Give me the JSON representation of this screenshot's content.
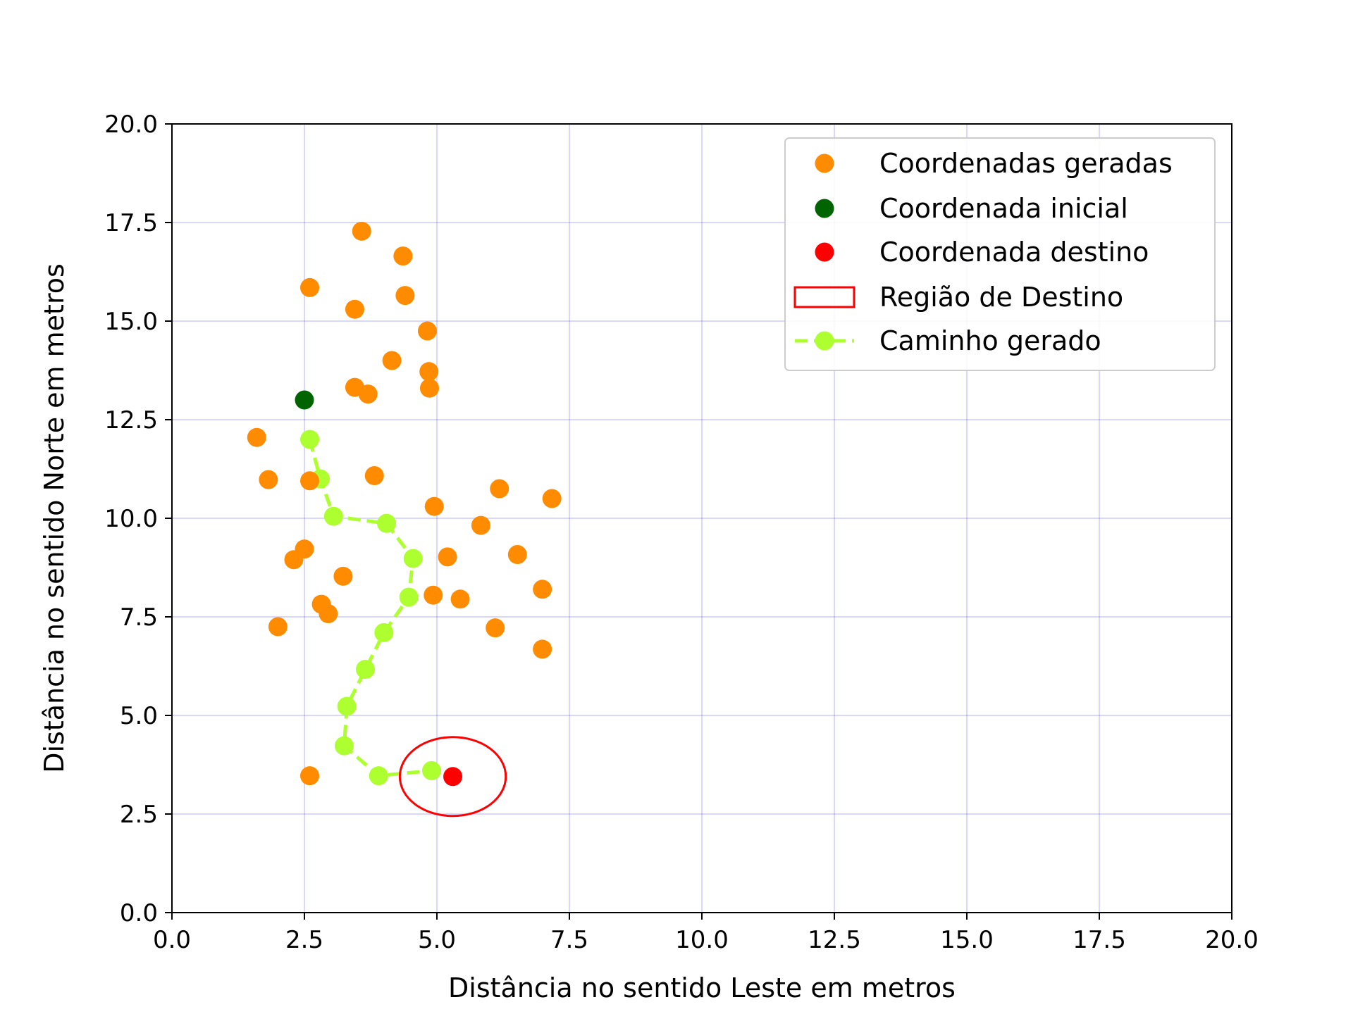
{
  "chart_data": {
    "type": "scatter",
    "xlabel": "Distância no sentido Leste em metros",
    "ylabel": "Distância no sentido Norte em metros",
    "xlim": [
      0,
      20
    ],
    "ylim": [
      0,
      20
    ],
    "xticks": [
      "0.0",
      "2.5",
      "5.0",
      "7.5",
      "10.0",
      "12.5",
      "15.0",
      "17.5",
      "20.0"
    ],
    "yticks": [
      "0.0",
      "2.5",
      "5.0",
      "7.5",
      "10.0",
      "12.5",
      "15.0",
      "17.5",
      "20.0"
    ],
    "grid": true,
    "legend_position": "top-right",
    "colors": {
      "generated": "#ff8c00",
      "start": "#006400",
      "destination": "#ff0000",
      "region": "#ff0000",
      "path": "#adff2f",
      "grid": "#0000ff"
    },
    "legend": [
      {
        "label": "Coordenadas geradas",
        "kind": "marker",
        "color": "#ff8c00"
      },
      {
        "label": "Coordenada inicial",
        "kind": "marker",
        "color": "#006400"
      },
      {
        "label": "Coordenada destino",
        "kind": "marker",
        "color": "#ff0000"
      },
      {
        "label": "Região de Destino",
        "kind": "rect",
        "color": "#ff0000"
      },
      {
        "label": "Caminho gerado",
        "kind": "line",
        "color": "#adff2f"
      }
    ],
    "generated_points": [
      [
        3.58,
        17.28
      ],
      [
        4.36,
        16.65
      ],
      [
        2.6,
        15.85
      ],
      [
        4.4,
        15.65
      ],
      [
        3.45,
        15.3
      ],
      [
        4.82,
        14.75
      ],
      [
        4.15,
        14.0
      ],
      [
        4.85,
        13.72
      ],
      [
        3.45,
        13.32
      ],
      [
        3.7,
        13.15
      ],
      [
        4.86,
        13.3
      ],
      [
        1.6,
        12.05
      ],
      [
        1.82,
        10.98
      ],
      [
        2.6,
        10.95
      ],
      [
        3.82,
        11.08
      ],
      [
        6.18,
        10.75
      ],
      [
        7.17,
        10.5
      ],
      [
        4.95,
        10.3
      ],
      [
        5.83,
        9.82
      ],
      [
        2.5,
        9.22
      ],
      [
        2.3,
        8.95
      ],
      [
        5.2,
        9.02
      ],
      [
        6.52,
        9.08
      ],
      [
        3.23,
        8.53
      ],
      [
        4.93,
        8.05
      ],
      [
        5.44,
        7.95
      ],
      [
        6.99,
        8.2
      ],
      [
        2.82,
        7.82
      ],
      [
        2.95,
        7.58
      ],
      [
        2.0,
        7.25
      ],
      [
        6.1,
        7.22
      ],
      [
        6.99,
        6.68
      ],
      [
        2.6,
        3.47
      ]
    ],
    "start_point": [
      2.5,
      13.0
    ],
    "destination_point": [
      5.3,
      3.45
    ],
    "destination_region": {
      "center": [
        5.3,
        3.45
      ],
      "width": 2.0,
      "height": 2.0
    },
    "path": [
      [
        2.6,
        12.0
      ],
      [
        2.8,
        11.0
      ],
      [
        3.05,
        10.05
      ],
      [
        4.05,
        9.87
      ],
      [
        4.55,
        8.98
      ],
      [
        4.47,
        8.0
      ],
      [
        4.0,
        7.1
      ],
      [
        3.65,
        6.17
      ],
      [
        3.3,
        5.23
      ],
      [
        3.25,
        4.23
      ],
      [
        3.9,
        3.47
      ],
      [
        4.9,
        3.6
      ]
    ]
  }
}
